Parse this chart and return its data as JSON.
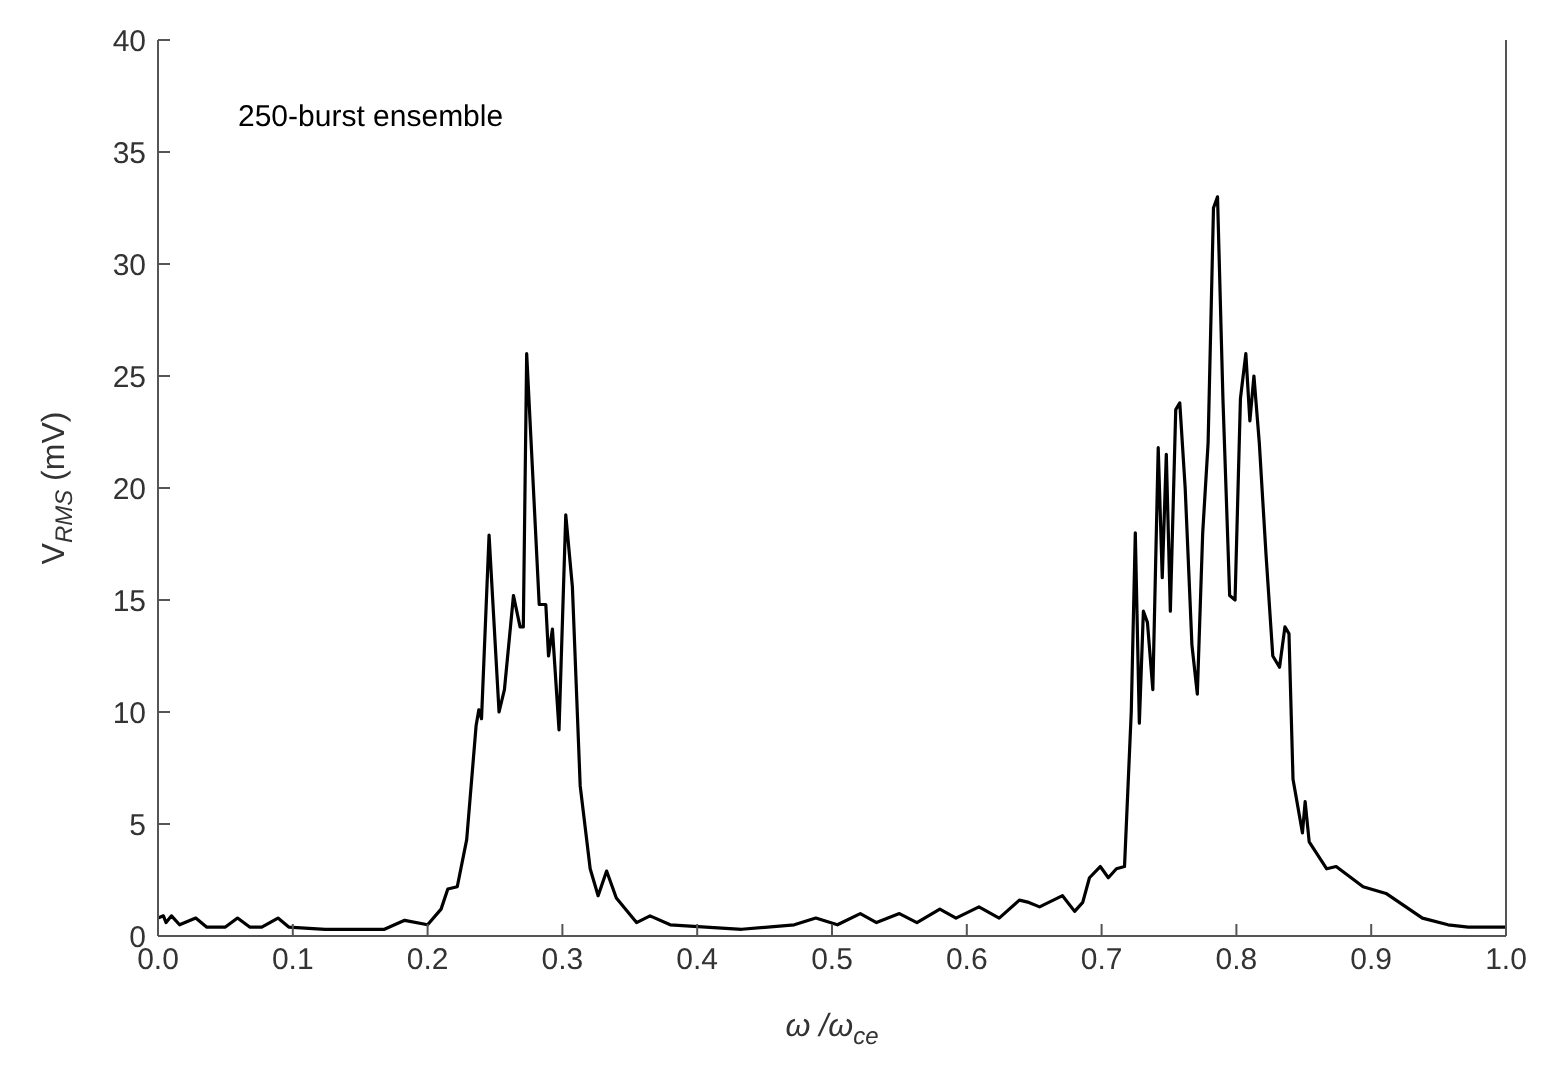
{
  "chart_data": {
    "type": "line",
    "xlabel": "ω /ω$_{ce}$",
    "ylabel": "V$_{RMS}$ (mV)",
    "annotations": [
      "250-burst ensemble"
    ],
    "x": [
      0,
      0.004,
      0.006,
      0.01,
      0.016,
      0.028,
      0.036,
      0.05,
      0.059,
      0.068,
      0.077,
      0.089,
      0.097,
      0.124,
      0.149,
      0.168,
      0.183,
      0.2,
      0.21,
      0.215,
      0.222,
      0.229,
      0.236,
      0.238,
      0.24,
      0.2456,
      0.253,
      0.257,
      0.2637,
      0.2686,
      0.271,
      0.2735,
      0.2828,
      0.2877,
      0.2897,
      0.2926,
      0.2975,
      0.3025,
      0.3074,
      0.3132,
      0.3206,
      0.3265,
      0.3328,
      0.34,
      0.355,
      0.365,
      0.38,
      0.433,
      0.472,
      0.488,
      0.504,
      0.521,
      0.533,
      0.55,
      0.563,
      0.58,
      0.592,
      0.609,
      0.624,
      0.639,
      0.646,
      0.654,
      0.671,
      0.68,
      0.686,
      0.691,
      0.699,
      0.705,
      0.711,
      0.717,
      0.722,
      0.725,
      0.728,
      0.731,
      0.734,
      0.738,
      0.742,
      0.745,
      0.748,
      0.751,
      0.755,
      0.758,
      0.762,
      0.767,
      0.771,
      0.775,
      0.779,
      0.783,
      0.786,
      0.79,
      0.795,
      0.799,
      0.803,
      0.807,
      0.81,
      0.813,
      0.817,
      0.822,
      0.827,
      0.832,
      0.836,
      0.839,
      0.842,
      0.849,
      0.851,
      0.854,
      0.867,
      0.874,
      0.894,
      0.911,
      0.938,
      0.957,
      0.972,
      1
    ],
    "series": [
      {
        "color": "#000000",
        "values": [
          0.8,
          0.9,
          0.6,
          0.9,
          0.5,
          0.8,
          0.4,
          0.4,
          0.8,
          0.4,
          0.4,
          0.8,
          0.4,
          0.3,
          0.3,
          0.3,
          0.7,
          0.5,
          1.2,
          2.1,
          2.2,
          4.3,
          9.4,
          10.1,
          9.7,
          17.9,
          10,
          11,
          15.2,
          13.8,
          13.8,
          26,
          14.8,
          14.8,
          12.5,
          13.7,
          9.2,
          18.8,
          15.6,
          6.7,
          3,
          1.8,
          2.9,
          1.7,
          0.6,
          0.9,
          0.5,
          0.3,
          0.5,
          0.8,
          0.5,
          1,
          0.6,
          1,
          0.6,
          1.2,
          0.8,
          1.3,
          0.8,
          1.6,
          1.5,
          1.3,
          1.8,
          1.1,
          1.5,
          2.6,
          3.1,
          2.6,
          3,
          3.1,
          10,
          18,
          9.5,
          14.5,
          14,
          11,
          21.8,
          16,
          21.5,
          14.5,
          23.5,
          23.8,
          20,
          13,
          10.8,
          18,
          22,
          32.5,
          33,
          24,
          15.2,
          15,
          24,
          26,
          23,
          25,
          22,
          17,
          12.5,
          12,
          13.8,
          13.5,
          7,
          4.6,
          6,
          4.2,
          3,
          3.1,
          2.2,
          1.9,
          0.8,
          0.5,
          0.4,
          0.4
        ]
      }
    ],
    "xlim": [
      0,
      1
    ],
    "xticks": [
      {
        "value": 0,
        "label": "0.0"
      },
      {
        "value": 0.1,
        "label": "0.1"
      },
      {
        "value": 0.2,
        "label": "0.2"
      },
      {
        "value": 0.3,
        "label": "0.3"
      },
      {
        "value": 0.4,
        "label": "0.4"
      },
      {
        "value": 0.5,
        "label": "0.5"
      },
      {
        "value": 0.6,
        "label": "0.6"
      },
      {
        "value": 0.7,
        "label": "0.7"
      },
      {
        "value": 0.8,
        "label": "0.8"
      },
      {
        "value": 0.9,
        "label": "0.9"
      },
      {
        "value": 1,
        "label": "1.0"
      }
    ],
    "ylim": [
      0,
      40
    ],
    "yticks": [
      0,
      5,
      10,
      15,
      20,
      25,
      30,
      35,
      40
    ],
    "marker": "none",
    "line_style": "solid"
  }
}
